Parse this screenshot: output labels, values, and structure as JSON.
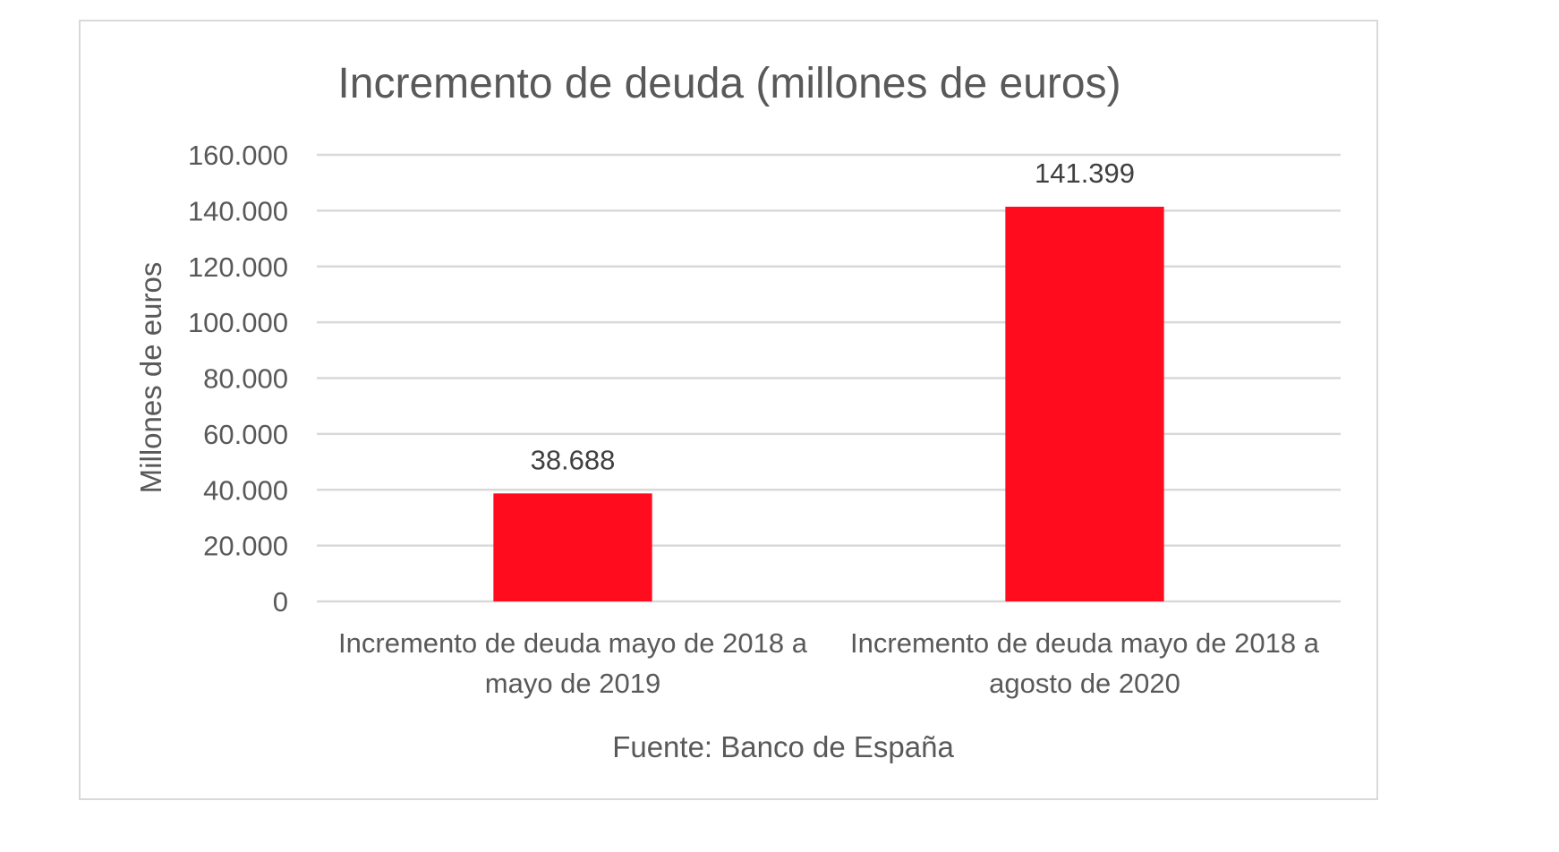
{
  "chart_data": {
    "type": "bar",
    "title": "Incremento de deuda (millones de euros)",
    "xlabel": "Fuente: Banco de España",
    "ylabel": "Millones de euros",
    "ylim": [
      0,
      160000
    ],
    "yticks": [
      0,
      20000,
      40000,
      60000,
      80000,
      100000,
      120000,
      140000,
      160000
    ],
    "ytick_labels": [
      "0",
      "20.000",
      "40.000",
      "60.000",
      "80.000",
      "100.000",
      "120.000",
      "140.000",
      "160.000"
    ],
    "categories": [
      [
        "Incremento de deuda mayo de 2018 a",
        "mayo de 2019"
      ],
      [
        "Incremento de deuda mayo de 2018 a",
        "agosto de 2020"
      ]
    ],
    "values": [
      38688,
      141399
    ],
    "data_labels": [
      "38.688",
      "141.399"
    ],
    "bar_color": "#ff0d1f",
    "grid": true,
    "legend": "none"
  }
}
